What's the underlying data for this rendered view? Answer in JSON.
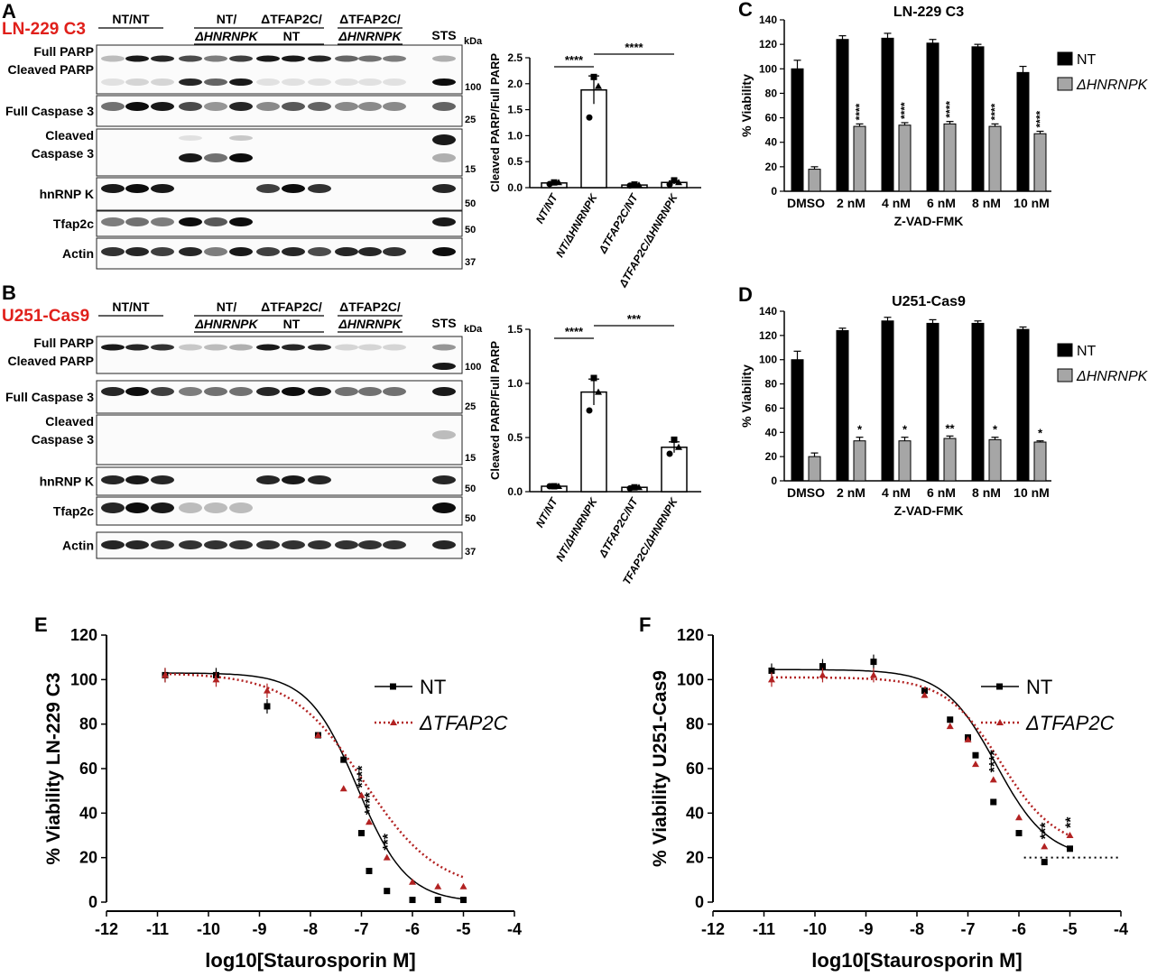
{
  "panels": {
    "A": {
      "letter": "A",
      "cell_line": "LN-229 C3"
    },
    "B": {
      "letter": "B",
      "cell_line": "U251-Cas9"
    },
    "C": {
      "letter": "C"
    },
    "D": {
      "letter": "D"
    },
    "E": {
      "letter": "E"
    },
    "F": {
      "letter": "F"
    }
  },
  "blot": {
    "groups": [
      {
        "line1": "NT/NT",
        "line2": ""
      },
      {
        "line1": "NT/",
        "line2": "ΔHNRNPK"
      },
      {
        "line1": "ΔTFAP2C/",
        "line2": "NT"
      },
      {
        "line1": "ΔTFAP2C/",
        "line2": "ΔHNRNPK"
      }
    ],
    "sts_label": "STS",
    "kda_label": "kDa",
    "rows": [
      {
        "label": "Full PARP",
        "label2": "Cleaved PARP"
      },
      {
        "label": "Full Caspase 3"
      },
      {
        "label": "Cleaved",
        "label2": "Caspase 3"
      },
      {
        "label": "hnRNP K"
      },
      {
        "label": "Tfap2c"
      },
      {
        "label": "Actin"
      }
    ],
    "markers": [
      "100",
      "25",
      "15",
      "50",
      "50",
      "37"
    ]
  },
  "chart_data": [
    {
      "id": "A-quant",
      "type": "bar",
      "ylabel": "Cleaved PARP/Full PARP",
      "ylim": [
        0,
        2.5
      ],
      "yticks": [
        "0.0",
        "0.5",
        "1.0",
        "1.5",
        "2.0",
        "2.5"
      ],
      "categories": [
        "NT/NT",
        "NT/ΔHNRNPK",
        "ΔTFAP2C/NT",
        "ΔTFAP2C/ΔHNRNPK"
      ],
      "values": [
        0.09,
        1.88,
        0.05,
        0.1
      ],
      "sem": [
        0.02,
        0.27,
        0.02,
        0.03
      ],
      "points": [
        [
          0.07,
          0.1,
          0.1
        ],
        [
          1.35,
          2.13,
          1.95
        ],
        [
          0.04,
          0.06,
          0.05
        ],
        [
          0.06,
          0.14,
          0.1
        ]
      ],
      "significance": [
        {
          "from": 0,
          "to": 1,
          "label": "****"
        },
        {
          "from": 1,
          "to": 3,
          "label": "****"
        }
      ]
    },
    {
      "id": "B-quant",
      "type": "bar",
      "ylabel": "Cleaved PARP/Full PARP",
      "ylim": [
        0,
        1.5
      ],
      "yticks": [
        "0.0",
        "0.5",
        "1.0",
        "1.5"
      ],
      "categories": [
        "NT/NT",
        "NT/ΔHNRNPK",
        "ΔTFAP2C/NT",
        "TFAP2C/ΔHNRNPK"
      ],
      "values": [
        0.05,
        0.92,
        0.04,
        0.41
      ],
      "sem": [
        0.01,
        0.12,
        0.01,
        0.05
      ],
      "points": [
        [
          0.05,
          0.05,
          0.05
        ],
        [
          0.75,
          1.05,
          0.92
        ],
        [
          0.03,
          0.04,
          0.04
        ],
        [
          0.35,
          0.48,
          0.41
        ]
      ],
      "significance": [
        {
          "from": 0,
          "to": 1,
          "label": "****"
        },
        {
          "from": 1,
          "to": 3,
          "label": "***"
        }
      ]
    },
    {
      "id": "C",
      "type": "bar",
      "title": "LN-229 C3",
      "ylabel": "% Viability",
      "xlabel": "Z-VAD-FMK",
      "ylim": [
        0,
        140
      ],
      "yticks": [
        "0",
        "20",
        "40",
        "60",
        "80",
        "100",
        "120",
        "140"
      ],
      "categories": [
        "DMSO",
        "2 nM",
        "4 nM",
        "6 nM",
        "8 nM",
        "10 nM"
      ],
      "series": [
        {
          "name": "NT",
          "values": [
            100,
            124,
            125,
            121,
            118,
            97
          ],
          "sem": [
            7,
            3,
            4,
            3,
            2,
            5
          ],
          "color": "#000000"
        },
        {
          "name": "ΔHNRNPK",
          "values": [
            18,
            53,
            54,
            55,
            53,
            47
          ],
          "sem": [
            2,
            2,
            2,
            2,
            2,
            2
          ],
          "color": "#a6a6a6",
          "stars": [
            "",
            "****",
            "****",
            "****",
            "****",
            "****"
          ]
        }
      ]
    },
    {
      "id": "D",
      "type": "bar",
      "title": "U251-Cas9",
      "ylabel": "% Viability",
      "xlabel": "Z-VAD-FMK",
      "ylim": [
        0,
        140
      ],
      "yticks": [
        "0",
        "20",
        "40",
        "60",
        "80",
        "100",
        "120",
        "140"
      ],
      "categories": [
        "DMSO",
        "2 nM",
        "4 nM",
        "6 nM",
        "8 nM",
        "10 nM"
      ],
      "series": [
        {
          "name": "NT",
          "values": [
            100,
            124,
            132,
            130,
            130,
            125
          ],
          "sem": [
            7,
            2,
            3,
            3,
            2,
            2
          ],
          "color": "#000000"
        },
        {
          "name": "ΔHNRNPK",
          "values": [
            20,
            33,
            33,
            35,
            34,
            32
          ],
          "sem": [
            3,
            3,
            3,
            2,
            2,
            1
          ],
          "color": "#a6a6a6",
          "stars": [
            "",
            "*",
            "*",
            "**",
            "*",
            "*"
          ]
        }
      ]
    },
    {
      "id": "E",
      "type": "scatter",
      "ylabel": "% Viability  LN-229 C3",
      "xlabel": "log10[Staurosporin M]",
      "xlim": [
        -12,
        -4
      ],
      "ylim": [
        0,
        120
      ],
      "xticks": [
        "-12",
        "-11",
        "-10",
        "-9",
        "-8",
        "-7",
        "-6",
        "-5",
        "-4"
      ],
      "yticks": [
        "0",
        "20",
        "40",
        "60",
        "80",
        "100",
        "120"
      ],
      "series": [
        {
          "name": "NT",
          "color": "#000000",
          "x": [
            -10.85,
            -9.85,
            -8.85,
            -7.85,
            -7.35,
            -7.0,
            -6.85,
            -6.5,
            -6.0,
            -5.5,
            -5.0
          ],
          "y": [
            102,
            102,
            88,
            75,
            64,
            31,
            14,
            5,
            1,
            1,
            1
          ],
          "fit": {
            "top": 103,
            "bottom": 0,
            "logec50": -7.08,
            "hill": -0.9
          }
        },
        {
          "name": "ΔTFAP2C",
          "color": "#b22222",
          "x": [
            -10.85,
            -9.85,
            -8.85,
            -7.85,
            -7.35,
            -7.0,
            -6.85,
            -6.5,
            -6.0,
            -5.5,
            -5.0
          ],
          "y": [
            102,
            100,
            95,
            75,
            51,
            48,
            36,
            20,
            9,
            7,
            7
          ],
          "fit": {
            "top": 103,
            "bottom": 5,
            "logec50": -6.95,
            "hill": -0.6
          }
        }
      ],
      "stars": [
        {
          "x": -7.0,
          "label": "****"
        },
        {
          "x": -6.85,
          "label": "****"
        },
        {
          "x": -6.5,
          "label": "***"
        }
      ]
    },
    {
      "id": "F",
      "type": "scatter",
      "ylabel": "% Viability  U251-Cas9",
      "xlabel": "log10[Staurosporin M]",
      "xlim": [
        -12,
        -4
      ],
      "ylim": [
        0,
        120
      ],
      "xticks": [
        "-12",
        "-11",
        "-10",
        "-9",
        "-8",
        "-7",
        "-6",
        "-5",
        "-4"
      ],
      "yticks": [
        "0",
        "20",
        "40",
        "60",
        "80",
        "100",
        "120"
      ],
      "reference_line": 20,
      "series": [
        {
          "name": "NT",
          "color": "#000000",
          "x": [
            -10.85,
            -9.85,
            -8.85,
            -7.85,
            -7.35,
            -7.0,
            -6.85,
            -6.5,
            -6.0,
            -5.5,
            -5.0
          ],
          "y": [
            104,
            106,
            108,
            95,
            82,
            74,
            66,
            45,
            31,
            18,
            24
          ],
          "fit": {
            "top": 104.5,
            "bottom": 19.5,
            "logec50": -6.45,
            "hill": -0.85
          }
        },
        {
          "name": "ΔTFAP2C",
          "color": "#b22222",
          "x": [
            -10.85,
            -9.85,
            -8.85,
            -7.85,
            -7.35,
            -7.0,
            -6.85,
            -6.5,
            -6.0,
            -5.5,
            -5.0
          ],
          "y": [
            100,
            102,
            102,
            93,
            79,
            73,
            62,
            55,
            38,
            25,
            30
          ],
          "fit": {
            "top": 101,
            "bottom": 24,
            "logec50": -6.35,
            "hill": -0.8
          }
        }
      ],
      "stars": [
        {
          "x": -6.5,
          "label": "****"
        },
        {
          "x": -5.5,
          "label": "***"
        },
        {
          "x": -5.0,
          "label": "**"
        }
      ]
    }
  ]
}
